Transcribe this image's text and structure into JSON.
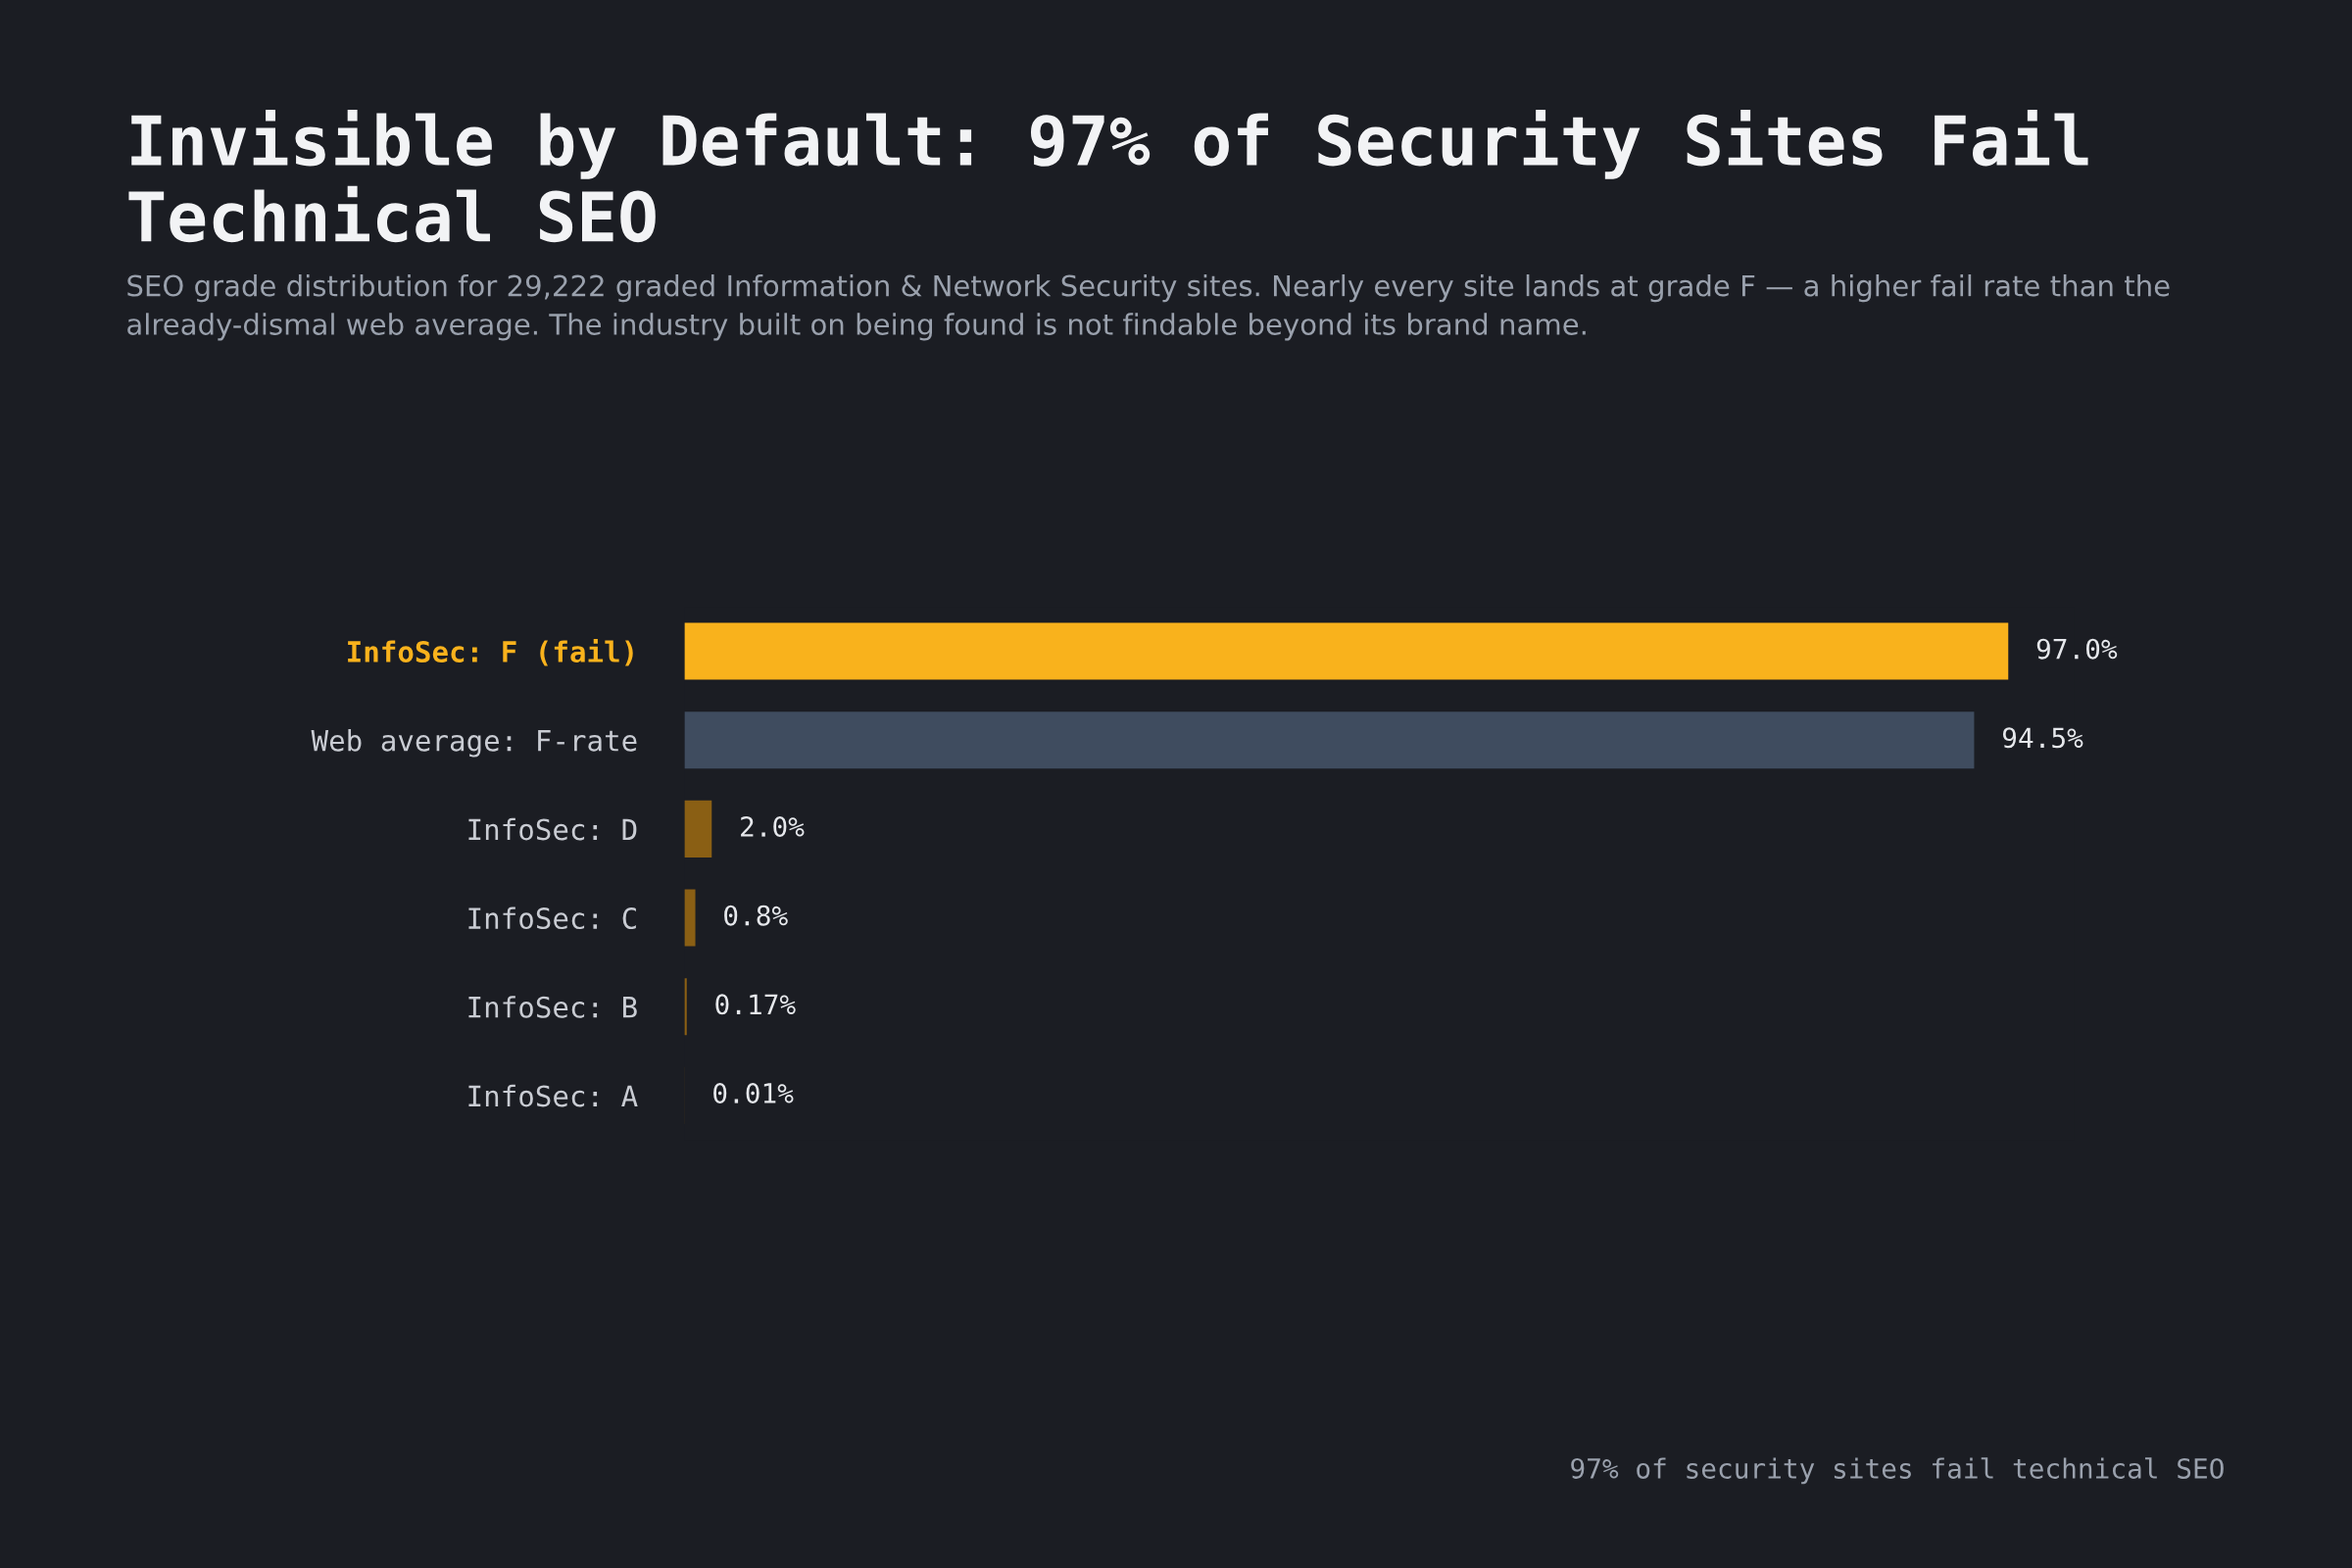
{
  "chart_data": {
    "type": "bar",
    "orientation": "horizontal",
    "title": "Invisible by Default: 97% of Security Sites Fail Technical SEO",
    "subtitle": "SEO grade distribution for 29,222 graded Information & Network Security sites. Nearly every site lands at grade F — a higher fail rate than the already-dismal web average. The industry built on being found is not findable beyond its brand name.",
    "categories": [
      "InfoSec: F (fail)",
      "Web average: F-rate",
      "InfoSec: D",
      "InfoSec: C",
      "InfoSec: B",
      "InfoSec: A"
    ],
    "values": [
      97.0,
      94.5,
      2.0,
      0.8,
      0.17,
      0.01
    ],
    "value_labels": [
      "97.0%",
      "94.5%",
      "2.0%",
      "0.8%",
      "0.17%",
      "0.01%"
    ],
    "colors": [
      "#f9b21c",
      "#3f4c5f",
      "#8a5f14",
      "#8a5f14",
      "#8a5f14",
      "#8a5f14"
    ],
    "grid": false,
    "legend": false,
    "annotations": [
      "97% of security sites fail technical SEO"
    ]
  }
}
